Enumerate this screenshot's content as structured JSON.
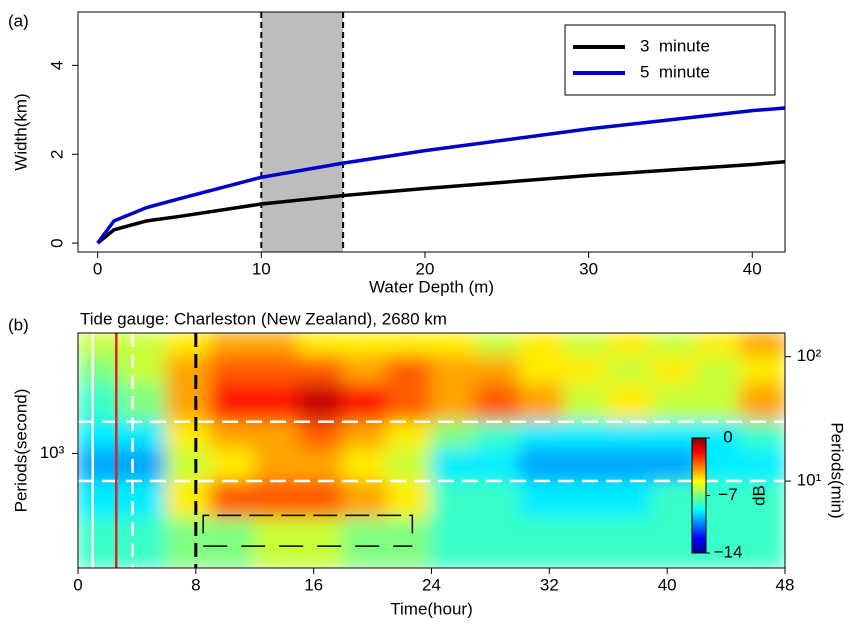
{
  "chart_data": [
    {
      "type": "line",
      "panel_label": "(a)",
      "x_label": "Water Depth (m)",
      "y_label": "Width(km)",
      "x": [
        0,
        1,
        3,
        5,
        10,
        15,
        20,
        30,
        40,
        42
      ],
      "series": [
        {
          "name": "3  minute",
          "color": "#000000",
          "values": [
            0,
            0.3,
            0.5,
            0.6,
            0.88,
            1.07,
            1.23,
            1.52,
            1.77,
            1.83
          ]
        },
        {
          "name": "5  minute",
          "color": "#0000cc",
          "values": [
            0,
            0.5,
            0.8,
            1.0,
            1.48,
            1.8,
            2.08,
            2.57,
            2.98,
            3.04
          ]
        }
      ],
      "shaded_x": [
        10,
        15
      ],
      "shade_color": "#bdbdbd",
      "xlim": [
        -1.2,
        42
      ],
      "ylim": [
        -0.2,
        5.2
      ],
      "xticks": [
        0,
        10,
        20,
        30,
        40
      ],
      "yticks": [
        0,
        2,
        4
      ],
      "legend": "top-right"
    },
    {
      "type": "heatmap",
      "panel_label": "(b)",
      "title": "Tide gauge: Charleston (New Zealand), 2680 km",
      "x_label": "Time(hour)",
      "y_label": "Periods(second)",
      "y2_label": "Periods(min)",
      "x": [
        0,
        3,
        6,
        9,
        12,
        15,
        18,
        21,
        24,
        27,
        30,
        33,
        36,
        39,
        42,
        45,
        48
      ],
      "y": [
        155,
        100,
        60,
        30,
        18,
        10,
        5,
        2
      ],
      "z": [
        [
          -6,
          -6,
          -5,
          -4,
          -4,
          -5,
          -5,
          -5,
          -5,
          -6,
          -5,
          -6,
          -5,
          -6,
          -5,
          -4
        ],
        [
          -7,
          -6,
          -4,
          -3,
          -3,
          -3,
          -4,
          -3,
          -4,
          -4,
          -5,
          -5,
          -6,
          -5,
          -6,
          -5
        ],
        [
          -8,
          -7,
          -4,
          -2,
          -2,
          -1,
          -2,
          -3,
          -4,
          -3,
          -4,
          -6,
          -5,
          -6,
          -6,
          -4
        ],
        [
          -9,
          -9,
          -5,
          -4,
          -4,
          -3,
          -4,
          -5,
          -7,
          -8,
          -9,
          -9,
          -9,
          -9,
          -9,
          -8
        ],
        [
          -10,
          -10,
          -6,
          -5,
          -4,
          -4,
          -5,
          -6,
          -9,
          -9,
          -10,
          -10,
          -10,
          -10,
          -9,
          -9
        ],
        [
          -9,
          -9,
          -5,
          -3,
          -3,
          -3,
          -4,
          -5,
          -8,
          -8,
          -9,
          -9,
          -9,
          -8,
          -8,
          -8
        ],
        [
          -8,
          -8,
          -7,
          -7,
          -6,
          -6,
          -7,
          -7,
          -8,
          -8,
          -8,
          -8,
          -8,
          -8,
          -8,
          -8
        ]
      ],
      "xlim": [
        0,
        48
      ],
      "xticks": [
        0,
        8,
        16,
        24,
        32,
        40,
        48
      ],
      "ylog": true,
      "ylim": [
        120,
        9300
      ],
      "yticks": [
        {
          "value": 1000,
          "label": "10³"
        }
      ],
      "y2lim": [
        2,
        155
      ],
      "y2ticks": [
        {
          "value": 100,
          "label": "10²"
        },
        {
          "value": 10,
          "label": "10¹"
        }
      ],
      "clim": [
        -14,
        0
      ],
      "colorbar_label": "dB",
      "cticks": [
        0,
        {
          "value": -7,
          "label": "−7"
        },
        {
          "value": -14,
          "label": "−14"
        }
      ],
      "vlines": [
        {
          "x": 1,
          "color": "#ffffff",
          "style": "solid"
        },
        {
          "x": 3.7,
          "color": "#ffffff",
          "style": "dashed"
        },
        {
          "x": 2.6,
          "color": "#e02020",
          "style": "solid"
        },
        {
          "x": 8,
          "color": "#000000",
          "style": "dashed"
        }
      ],
      "hlines": [
        {
          "y": 30,
          "color": "#ffffff",
          "style": "dashed"
        },
        {
          "y": 10,
          "color": "#ffffff",
          "style": "dashed"
        }
      ],
      "bracket": {
        "x": [
          8.5,
          22.7
        ],
        "y": [
          5.3,
          3.0
        ]
      }
    }
  ]
}
